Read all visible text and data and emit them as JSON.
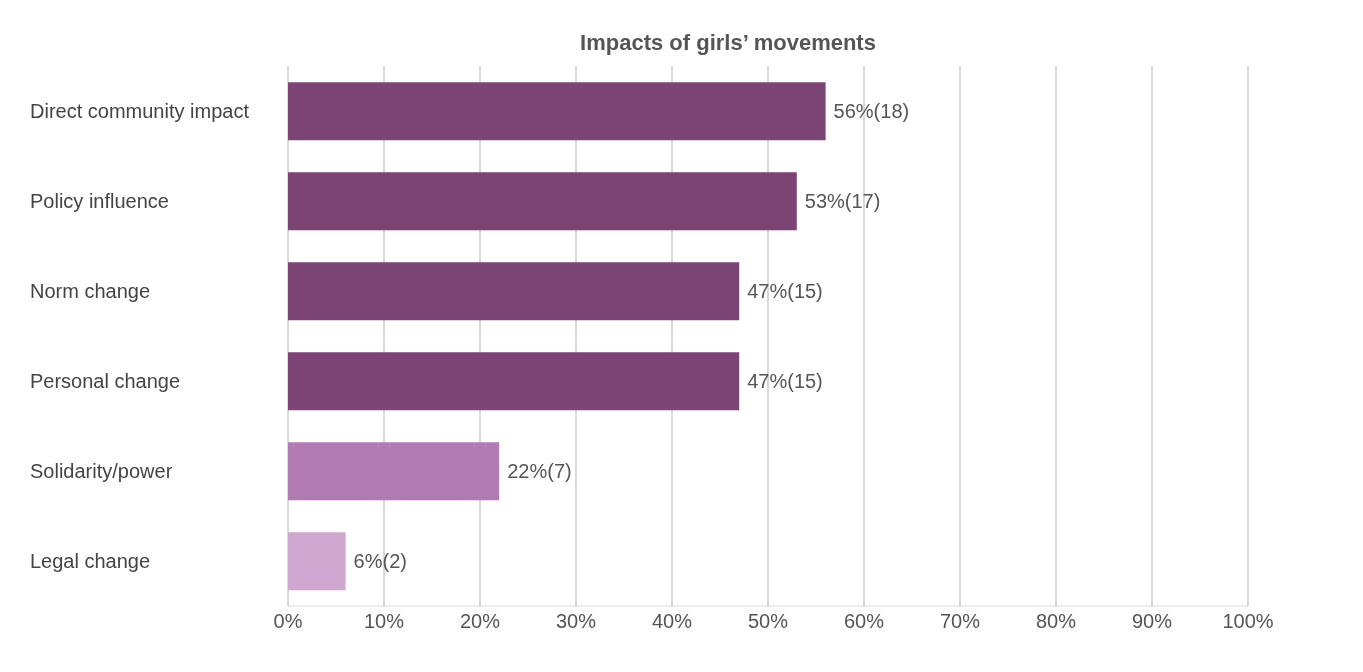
{
  "chart_data": {
    "type": "bar",
    "orientation": "horizontal",
    "title": "Impacts of girls’ movements",
    "categories": [
      "Direct community impact",
      "Policy influence",
      "Norm change",
      "Personal change",
      "Solidarity/power",
      "Legal change"
    ],
    "values": [
      56,
      53,
      47,
      47,
      22,
      6
    ],
    "colors": [
      "#7b4474",
      "#7b4474",
      "#7b4474",
      "#7b4474",
      "#b27bb4",
      "#d0a8cf"
    ],
    "value_labels": [
      "56%(18)",
      "53%(17)",
      "47%(15)",
      "47%(15)",
      "22%(7)",
      "6%(2)"
    ],
    "xlim": [
      0,
      100
    ],
    "xticks": [
      {
        "value": 0,
        "label": "0%"
      },
      {
        "value": 10,
        "label": "10%"
      },
      {
        "value": 20,
        "label": "20%"
      },
      {
        "value": 30,
        "label": "30%"
      },
      {
        "value": 40,
        "label": "40%"
      },
      {
        "value": 50,
        "label": "50%"
      },
      {
        "value": 60,
        "label": "60%"
      },
      {
        "value": 70,
        "label": "70%"
      },
      {
        "value": 80,
        "label": "80%"
      },
      {
        "value": 90,
        "label": "90%"
      },
      {
        "value": 100,
        "label": "100%"
      }
    ],
    "grid": "x"
  }
}
